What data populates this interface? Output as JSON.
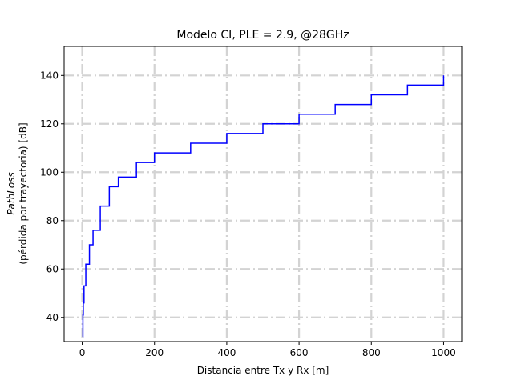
{
  "chart_data": {
    "type": "line",
    "title": "Modelo CI, PLE = 2.9, @28GHz",
    "xlabel": "Distancia entre Tx y Rx [m]",
    "ylabel_line1": "PathLoss",
    "ylabel_line2": "(pérdida por trayectoria) [dB]",
    "xlim": [
      -50,
      1050
    ],
    "ylim": [
      30,
      152
    ],
    "xticks": [
      0,
      200,
      400,
      600,
      800,
      1000
    ],
    "yticks": [
      40,
      60,
      80,
      100,
      120,
      140
    ],
    "grid": true,
    "step": true,
    "series": [
      {
        "color": "#0000ff",
        "x": [
          1,
          2,
          3,
          5,
          10,
          20,
          30,
          50,
          75,
          100,
          150,
          200,
          300,
          400,
          500,
          600,
          700,
          800,
          900,
          1000
        ],
        "y": [
          32,
          41,
          46,
          53,
          62,
          70,
          76,
          86,
          94,
          98,
          104,
          108,
          112,
          116,
          120,
          124,
          128,
          132,
          136,
          140
        ]
      }
    ]
  }
}
